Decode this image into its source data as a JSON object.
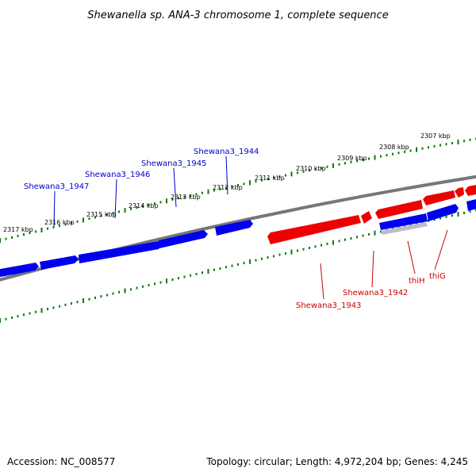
{
  "title": "Shewanella sp. ANA-3 chromosome 1, complete sequence",
  "footer": {
    "accession": "Accession: NC_008577",
    "summary": "Topology: circular; Length: 4,972,204 bp; Genes: 4,245"
  },
  "colors": {
    "forward_gene": "#0000ee",
    "reverse_gene": "#ee0000",
    "backbone": "#777777",
    "ruler": "#117711",
    "forward_label": "#0000cc",
    "reverse_label": "#cc0000"
  },
  "ruler_labels": [
    "2317 kbp",
    "2316 kbp",
    "2315 kbp",
    "2314 kbp",
    "2313 kbp",
    "2312 kbp",
    "2311 kbp",
    "2310 kbp",
    "2309 kbp",
    "2308 kbp",
    "2307 kbp"
  ],
  "forward_genes": [
    "Shewana3_1947",
    "Shewana3_1946",
    "Shewana3_1945",
    "Shewana3_1944"
  ],
  "reverse_genes": [
    "Shewana3_1943",
    "Shewana3_1942",
    "thiH",
    "thiG"
  ]
}
